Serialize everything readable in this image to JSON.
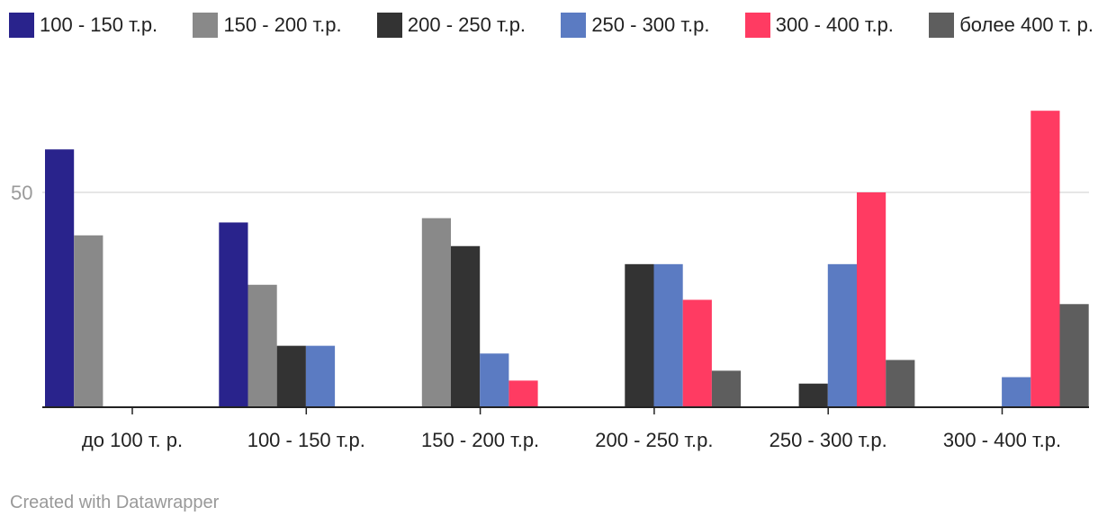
{
  "chart_data": {
    "type": "bar",
    "categories": [
      "до 100 т. р.",
      "100 - 150 т.р.",
      "150 - 200 т.р.",
      "200 - 250 т.р.",
      "250 - 300 т.р.",
      "300 - 400 т.р."
    ],
    "series": [
      {
        "name": "100 - 150 т.р.",
        "color": "#29238c",
        "values": [
          60,
          43,
          0,
          0,
          0,
          0
        ]
      },
      {
        "name": "150 - 200 т.р.",
        "color": "#898989",
        "values": [
          40,
          28.5,
          44,
          0,
          0,
          0
        ]
      },
      {
        "name": "200 - 250 т.р.",
        "color": "#333333",
        "values": [
          0,
          14.3,
          37.5,
          33.3,
          5.5,
          0
        ]
      },
      {
        "name": "250 - 300 т.р.",
        "color": "#5b7bc2",
        "values": [
          0,
          14.3,
          12.5,
          33.3,
          33.3,
          7
        ]
      },
      {
        "name": "300 - 400 т.р.",
        "color": "#ff3b62",
        "values": [
          0,
          0,
          6.2,
          25,
          50,
          69
        ]
      },
      {
        "name": "более 400 т. р.",
        "color": "#5e5e5e",
        "values": [
          0,
          0,
          0,
          8.5,
          11,
          24
        ]
      }
    ],
    "y_ticks": [
      "50"
    ],
    "ylim": [
      0,
      74
    ],
    "grid": true,
    "legend_position": "top"
  },
  "footer": {
    "credit": "Created with Datawrapper"
  }
}
